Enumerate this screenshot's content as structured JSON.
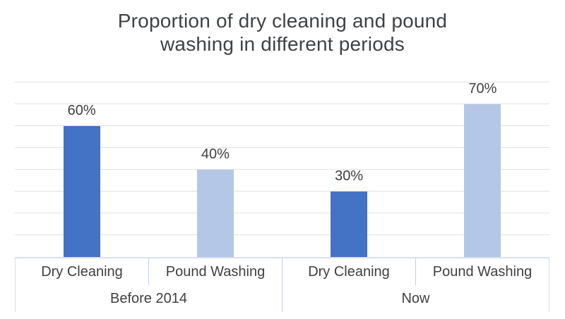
{
  "title": {
    "line1": "Proportion of dry cleaning and pound",
    "line2": "washing in different periods"
  },
  "chart_data": {
    "type": "bar",
    "title": "Proportion of dry cleaning and pound washing in different periods",
    "xlabel": "",
    "ylabel": "",
    "unit": "percent",
    "ylim": [
      0,
      80
    ],
    "grid": true,
    "grid_step": 10,
    "legend_position": "none",
    "y_axis_labels_visible": false,
    "groups": [
      {
        "label": "Before 2014",
        "bars": [
          {
            "category": "Dry Cleaning",
            "value": 60,
            "label": "60%",
            "color": "#4472C4"
          },
          {
            "category": "Pound Washing",
            "value": 40,
            "label": "40%",
            "color": "#B4C7E7"
          }
        ]
      },
      {
        "label": "Now",
        "bars": [
          {
            "category": "Dry Cleaning",
            "value": 30,
            "label": "30%",
            "color": "#4472C4"
          },
          {
            "category": "Pound Washing",
            "value": 70,
            "label": "70%",
            "color": "#B4C7E7"
          }
        ]
      }
    ]
  },
  "colors": {
    "dry_cleaning_bar": "#4472C4",
    "pound_washing_bar": "#B4C7E7",
    "gridline": "#E1E1E1",
    "axis_line": "#D9E1F0",
    "axis_divider": "#C3CFE9",
    "axis_divider_light": "#D6DFF2",
    "text": "#404040",
    "title_text": "#3F4245",
    "background": "#FFFFFF"
  }
}
